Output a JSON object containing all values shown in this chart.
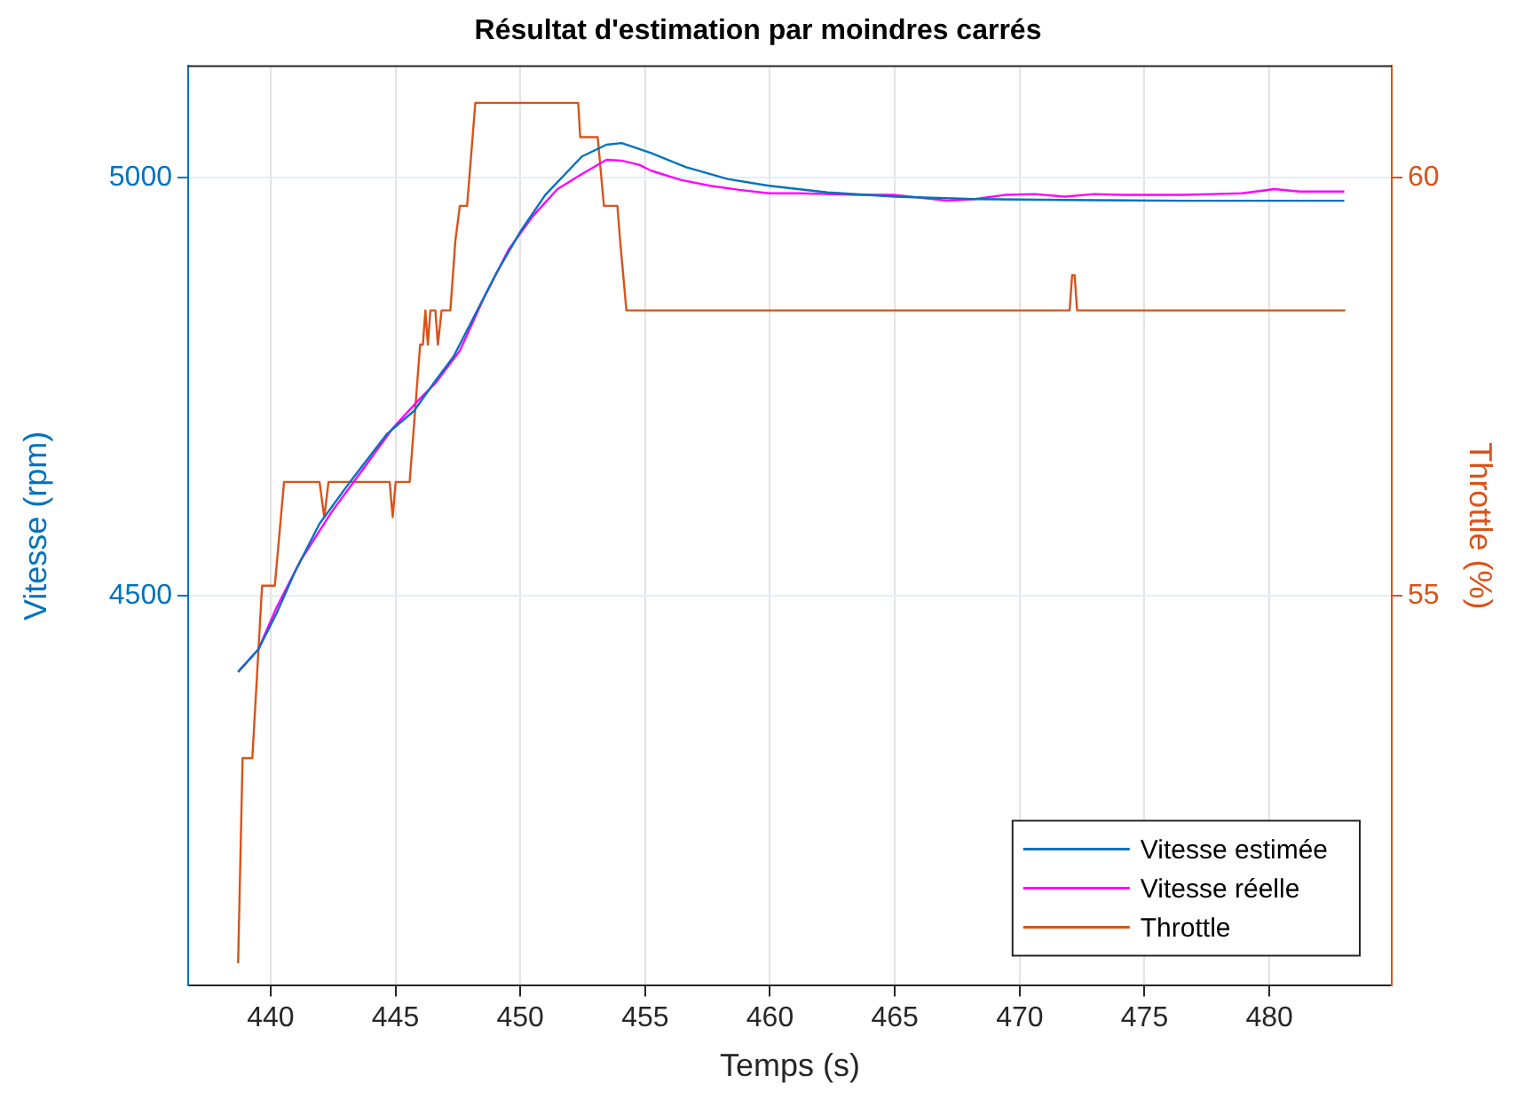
{
  "chart_data": {
    "type": "line",
    "title": "Résultat d'estimation par moindres carrés",
    "xlabel": "Temps (s)",
    "ylabel": "Vitesse (rpm)",
    "y2label": "Throttle (%)",
    "xlim": [
      436.7,
      484.9
    ],
    "xticks": [
      440,
      445,
      450,
      455,
      460,
      465,
      470,
      475,
      480
    ],
    "ylim": [
      4034,
      5133
    ],
    "yticks": [
      4500,
      5000
    ],
    "y2lim": [
      50.34,
      61.33
    ],
    "y2ticks": [
      55,
      60
    ],
    "grid": true,
    "legend": "bottom right",
    "marker": "none",
    "line_style": "solid",
    "series": [
      {
        "name": "Vitesse estimée",
        "color": "#0072bd",
        "x": [
          438.7,
          439.51,
          440.24,
          440.98,
          441.96,
          443.18,
          444.65,
          445.75,
          446.6,
          447.33,
          448.07,
          449.05,
          450.02,
          451.0,
          452.47,
          453.45,
          454.06,
          455.24,
          456.65,
          458.3,
          459.96,
          462.3,
          465,
          468.2,
          471.8,
          476.5,
          483.0
        ],
        "values": [
          4409,
          4436,
          4479,
          4529,
          4586,
          4636,
          4693,
          4721,
          4757,
          4786,
          4829,
          4886,
          4936,
          4979,
          5025,
          5039,
          5041,
          5029,
          5012,
          4998,
          4990,
          4982,
          4977,
          4974,
          4973,
          4972,
          4972
        ]
      },
      {
        "name": "Vitesse réelle",
        "color": "#ff00ff",
        "x": [
          438.7,
          439.51,
          440.24,
          441.22,
          442.44,
          443.67,
          444.89,
          445.87,
          446.6,
          447.58,
          448.56,
          449.54,
          450.51,
          451.49,
          452.47,
          453.45,
          454.05,
          454.76,
          455.24,
          456.42,
          457.6,
          458.78,
          459.96,
          461.15,
          462.33,
          463.5,
          465,
          465.9,
          467.1,
          468.2,
          469.4,
          470.6,
          471.8,
          473.0,
          474.1,
          475.3,
          476.5,
          477.7,
          478.9,
          480.2,
          481.2,
          483.0
        ],
        "values": [
          4409,
          4436,
          4486,
          4543,
          4600,
          4650,
          4700,
          4732,
          4754,
          4793,
          4857,
          4914,
          4954,
          4986,
          5004,
          5021,
          5020,
          5015,
          5008,
          4997,
          4990,
          4985,
          4981,
          4981,
          4980,
          4979,
          4979,
          4976,
          4972,
          4974,
          4979,
          4980,
          4977,
          4980,
          4979,
          4979,
          4979,
          4980,
          4981,
          4986,
          4983,
          4983
        ]
      },
      {
        "name": "Throttle",
        "color": "#d95319",
        "axis": "y2",
        "x": [
          438.7,
          438.88,
          439.27,
          439.66,
          440.17,
          440.54,
          441.96,
          442.15,
          442.32,
          444.77,
          444.89,
          445.01,
          445.57,
          445.99,
          446.1,
          446.2,
          446.3,
          446.4,
          446.6,
          446.7,
          446.85,
          447.2,
          447.4,
          447.58,
          447.87,
          448.2,
          452.32,
          452.4,
          453.1,
          453.35,
          453.89,
          454.0,
          454.25,
          472.0,
          472.1,
          472.2,
          472.3,
          483.04
        ],
        "values": [
          50.61,
          53.06,
          53.06,
          55.12,
          55.12,
          56.36,
          56.36,
          55.94,
          56.36,
          56.36,
          55.94,
          56.36,
          56.36,
          58.0,
          58.0,
          58.41,
          58.0,
          58.41,
          58.41,
          58.0,
          58.41,
          58.41,
          59.24,
          59.66,
          59.66,
          60.89,
          60.89,
          60.48,
          60.48,
          59.66,
          59.66,
          59.24,
          58.41,
          58.41,
          58.83,
          58.83,
          58.41,
          58.41
        ]
      }
    ]
  }
}
